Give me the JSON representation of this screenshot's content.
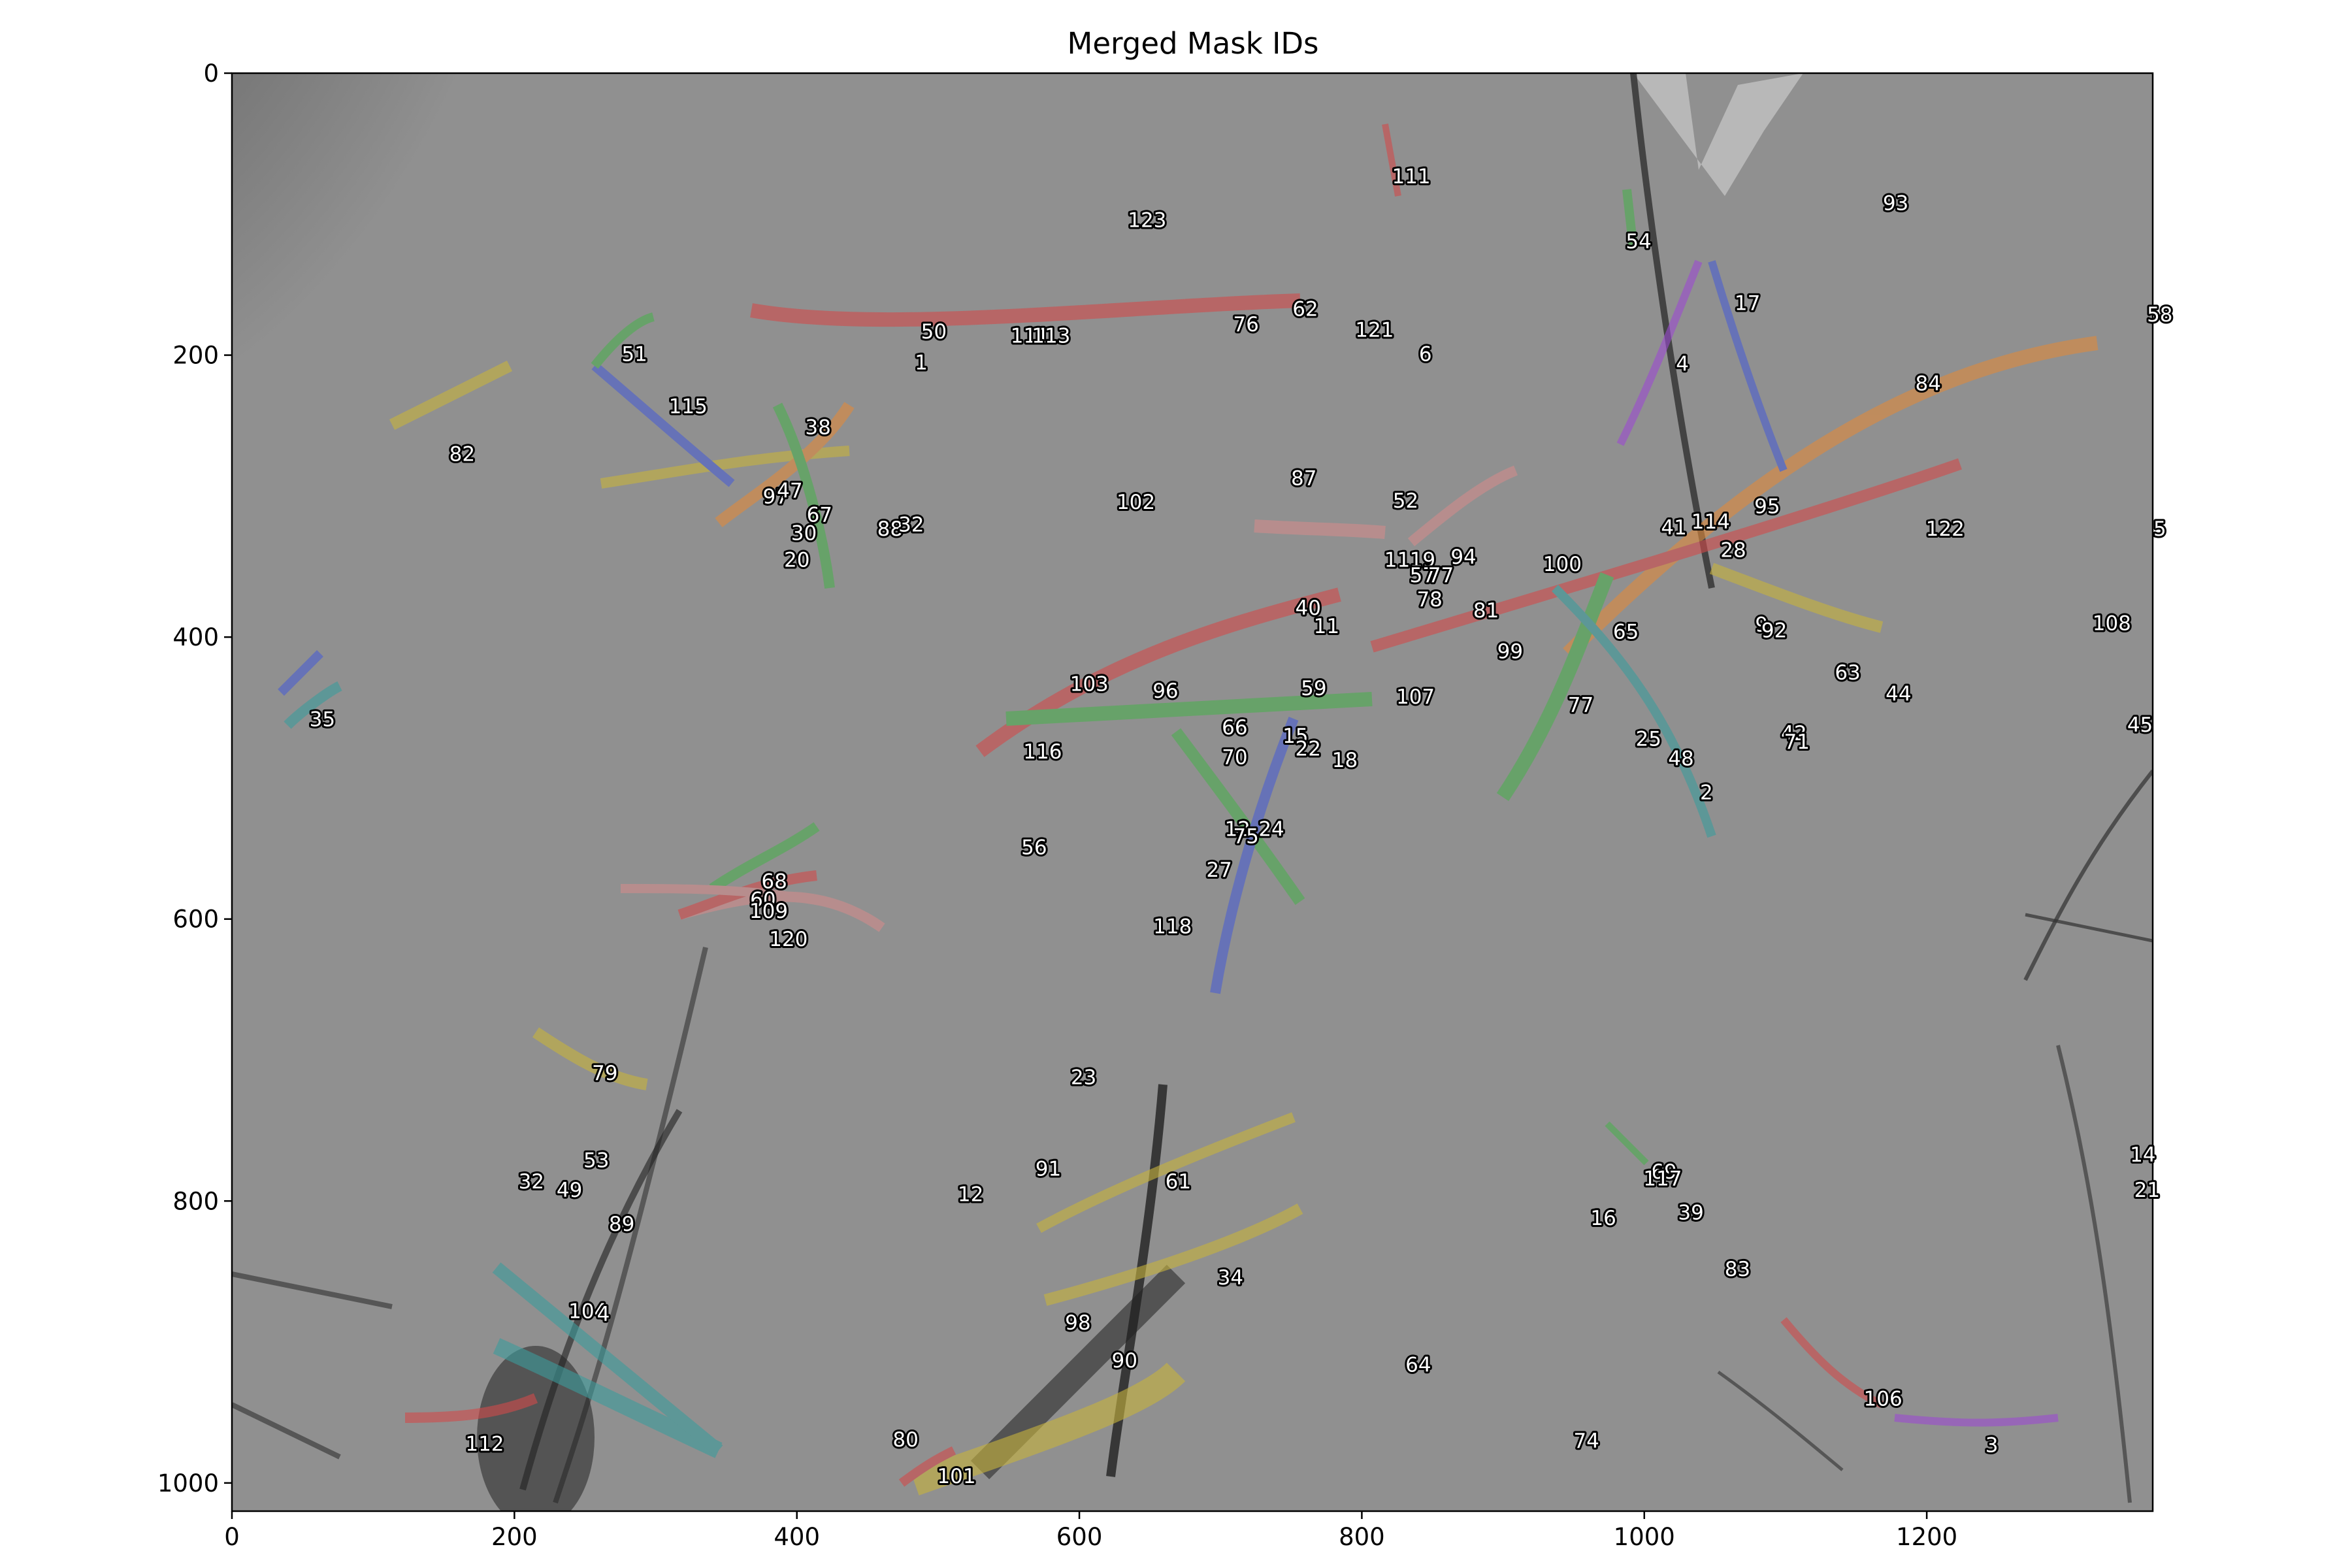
{
  "chart_data": {
    "type": "scatter",
    "title": "Merged Mask IDs",
    "xlabel": "",
    "ylabel": "",
    "xlim": [
      0,
      1360
    ],
    "ylim": [
      1020,
      0
    ],
    "y_inverted": true,
    "grid": false,
    "x_ticks": [
      0,
      200,
      400,
      600,
      800,
      1000,
      1200
    ],
    "y_ticks": [
      0,
      200,
      400,
      600,
      800,
      1000
    ],
    "x_tick_labels": [
      "0",
      "200",
      "400",
      "600",
      "800",
      "1000",
      "1200"
    ],
    "y_tick_labels": [
      "0",
      "200",
      "400",
      "600",
      "800",
      "1000"
    ],
    "background": "grayscale microscopy image",
    "mask_colors": [
      "#d24b4b",
      "#4caf50",
      "#4b5fd2",
      "#c8b43c",
      "#e08a3c",
      "#9c4bd2",
      "#3c9c9c",
      "#d28c8c"
    ],
    "labels": [
      {
        "id": "111",
        "x": 835,
        "y": 73
      },
      {
        "id": "123",
        "x": 648,
        "y": 104
      },
      {
        "id": "93",
        "x": 1178,
        "y": 92
      },
      {
        "id": "54",
        "x": 996,
        "y": 119
      },
      {
        "id": "17",
        "x": 1073,
        "y": 163
      },
      {
        "id": "58",
        "x": 1365,
        "y": 171
      },
      {
        "id": "62",
        "x": 760,
        "y": 167
      },
      {
        "id": "50",
        "x": 497,
        "y": 183
      },
      {
        "id": "111",
        "x": 565,
        "y": 186
      },
      {
        "id": "113",
        "x": 580,
        "y": 186
      },
      {
        "id": "76",
        "x": 718,
        "y": 178
      },
      {
        "id": "121",
        "x": 809,
        "y": 182
      },
      {
        "id": "6",
        "x": 845,
        "y": 199
      },
      {
        "id": "1",
        "x": 488,
        "y": 205
      },
      {
        "id": "51",
        "x": 285,
        "y": 199
      },
      {
        "id": "4",
        "x": 1027,
        "y": 206
      },
      {
        "id": "84",
        "x": 1201,
        "y": 220
      },
      {
        "id": "115",
        "x": 323,
        "y": 236
      },
      {
        "id": "38",
        "x": 415,
        "y": 251
      },
      {
        "id": "82",
        "x": 163,
        "y": 270
      },
      {
        "id": "87",
        "x": 759,
        "y": 287
      },
      {
        "id": "52",
        "x": 831,
        "y": 303
      },
      {
        "id": "102",
        "x": 640,
        "y": 304
      },
      {
        "id": "97",
        "x": 385,
        "y": 300
      },
      {
        "id": "47",
        "x": 395,
        "y": 296
      },
      {
        "id": "67",
        "x": 416,
        "y": 313
      },
      {
        "id": "30",
        "x": 405,
        "y": 326
      },
      {
        "id": "88",
        "x": 466,
        "y": 323
      },
      {
        "id": "32",
        "x": 481,
        "y": 320
      },
      {
        "id": "95",
        "x": 1087,
        "y": 307
      },
      {
        "id": "41",
        "x": 1021,
        "y": 322
      },
      {
        "id": "114",
        "x": 1047,
        "y": 318
      },
      {
        "id": "122",
        "x": 1213,
        "y": 323
      },
      {
        "id": "5",
        "x": 1365,
        "y": 323
      },
      {
        "id": "28",
        "x": 1063,
        "y": 338
      },
      {
        "id": "20",
        "x": 400,
        "y": 345
      },
      {
        "id": "11",
        "x": 825,
        "y": 345
      },
      {
        "id": "19",
        "x": 843,
        "y": 345
      },
      {
        "id": "57",
        "x": 843,
        "y": 356
      },
      {
        "id": "77",
        "x": 856,
        "y": 356
      },
      {
        "id": "94",
        "x": 872,
        "y": 343
      },
      {
        "id": "100",
        "x": 942,
        "y": 348
      },
      {
        "id": "78",
        "x": 848,
        "y": 373
      },
      {
        "id": "40",
        "x": 762,
        "y": 379
      },
      {
        "id": "81",
        "x": 888,
        "y": 381
      },
      {
        "id": "11",
        "x": 775,
        "y": 392
      },
      {
        "id": "65",
        "x": 987,
        "y": 396
      },
      {
        "id": "9",
        "x": 1083,
        "y": 391
      },
      {
        "id": "92",
        "x": 1092,
        "y": 395
      },
      {
        "id": "108",
        "x": 1331,
        "y": 390
      },
      {
        "id": "99",
        "x": 905,
        "y": 410
      },
      {
        "id": "63",
        "x": 1144,
        "y": 425
      },
      {
        "id": "103",
        "x": 607,
        "y": 433
      },
      {
        "id": "96",
        "x": 661,
        "y": 438
      },
      {
        "id": "59",
        "x": 766,
        "y": 436
      },
      {
        "id": "44",
        "x": 1180,
        "y": 440
      },
      {
        "id": "107",
        "x": 838,
        "y": 442
      },
      {
        "id": "77",
        "x": 955,
        "y": 448
      },
      {
        "id": "35",
        "x": 64,
        "y": 458
      },
      {
        "id": "45",
        "x": 1351,
        "y": 462
      },
      {
        "id": "66",
        "x": 710,
        "y": 464
      },
      {
        "id": "15",
        "x": 753,
        "y": 470
      },
      {
        "id": "42",
        "x": 1106,
        "y": 468
      },
      {
        "id": "71",
        "x": 1108,
        "y": 474
      },
      {
        "id": "25",
        "x": 1003,
        "y": 472
      },
      {
        "id": "116",
        "x": 574,
        "y": 481
      },
      {
        "id": "22",
        "x": 762,
        "y": 479
      },
      {
        "id": "70",
        "x": 710,
        "y": 485
      },
      {
        "id": "18",
        "x": 788,
        "y": 487
      },
      {
        "id": "48",
        "x": 1026,
        "y": 486
      },
      {
        "id": "2",
        "x": 1044,
        "y": 510
      },
      {
        "id": "12",
        "x": 712,
        "y": 536
      },
      {
        "id": "24",
        "x": 736,
        "y": 536
      },
      {
        "id": "75",
        "x": 718,
        "y": 541
      },
      {
        "id": "56",
        "x": 568,
        "y": 549
      },
      {
        "id": "27",
        "x": 699,
        "y": 565
      },
      {
        "id": "68",
        "x": 384,
        "y": 573
      },
      {
        "id": "60",
        "x": 376,
        "y": 586
      },
      {
        "id": "109",
        "x": 380,
        "y": 594
      },
      {
        "id": "118",
        "x": 666,
        "y": 605
      },
      {
        "id": "120",
        "x": 394,
        "y": 614
      },
      {
        "id": "79",
        "x": 264,
        "y": 709
      },
      {
        "id": "23",
        "x": 603,
        "y": 712
      },
      {
        "id": "53",
        "x": 258,
        "y": 771
      },
      {
        "id": "91",
        "x": 578,
        "y": 777
      },
      {
        "id": "69",
        "x": 1014,
        "y": 779
      },
      {
        "id": "117",
        "x": 1013,
        "y": 784
      },
      {
        "id": "32",
        "x": 212,
        "y": 786
      },
      {
        "id": "49",
        "x": 239,
        "y": 792
      },
      {
        "id": "61",
        "x": 670,
        "y": 786
      },
      {
        "id": "12",
        "x": 523,
        "y": 795
      },
      {
        "id": "39",
        "x": 1033,
        "y": 808
      },
      {
        "id": "16",
        "x": 971,
        "y": 812
      },
      {
        "id": "89",
        "x": 276,
        "y": 816
      },
      {
        "id": "83",
        "x": 1066,
        "y": 848
      },
      {
        "id": "34",
        "x": 707,
        "y": 854
      },
      {
        "id": "104",
        "x": 252,
        "y": 878
      },
      {
        "id": "4",
        "x": 263,
        "y": 880
      },
      {
        "id": "98",
        "x": 599,
        "y": 886
      },
      {
        "id": "90",
        "x": 632,
        "y": 913
      },
      {
        "id": "64",
        "x": 840,
        "y": 916
      },
      {
        "id": "106",
        "x": 1169,
        "y": 940
      },
      {
        "id": "80",
        "x": 477,
        "y": 969
      },
      {
        "id": "74",
        "x": 959,
        "y": 970
      },
      {
        "id": "112",
        "x": 179,
        "y": 972
      },
      {
        "id": "3",
        "x": 1246,
        "y": 973
      },
      {
        "id": "101",
        "x": 513,
        "y": 995
      },
      {
        "id": "14",
        "x": 1353,
        "y": 767
      },
      {
        "id": "21",
        "x": 1356,
        "y": 792
      }
    ]
  }
}
